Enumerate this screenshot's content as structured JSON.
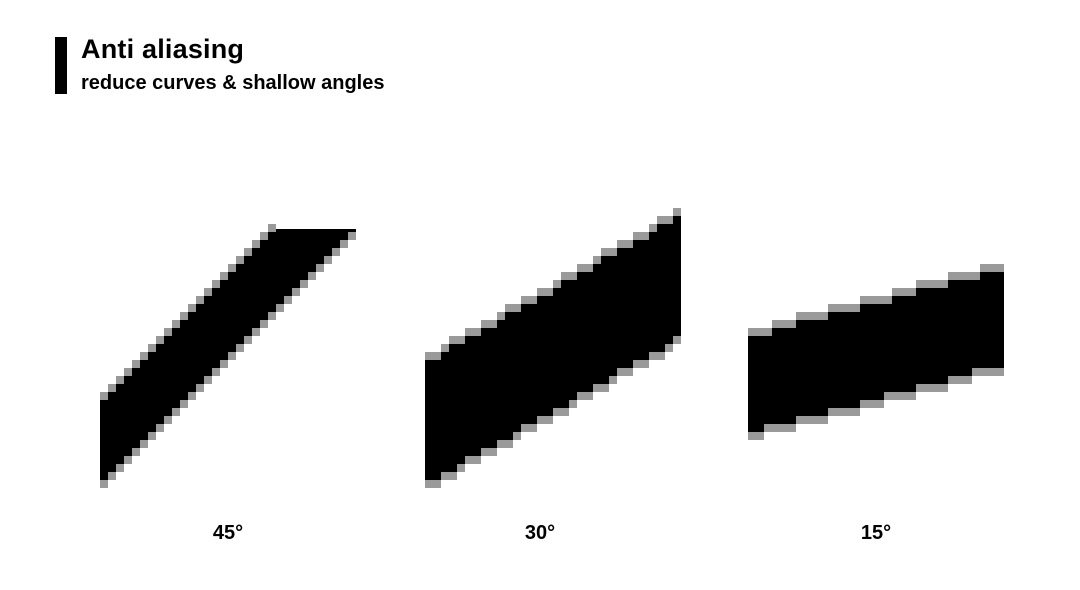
{
  "header": {
    "title": "Anti aliasing",
    "subtitle": "reduce curves & shallow angles"
  },
  "shapes": [
    {
      "angle_label": "45°",
      "angle_degrees": 45
    },
    {
      "angle_label": "30°",
      "angle_degrees": 30
    },
    {
      "angle_label": "15°",
      "angle_degrees": 15
    }
  ],
  "colors": {
    "background": "#ffffff",
    "fill": "#000000",
    "edge_shade": "#9a9a9a"
  }
}
